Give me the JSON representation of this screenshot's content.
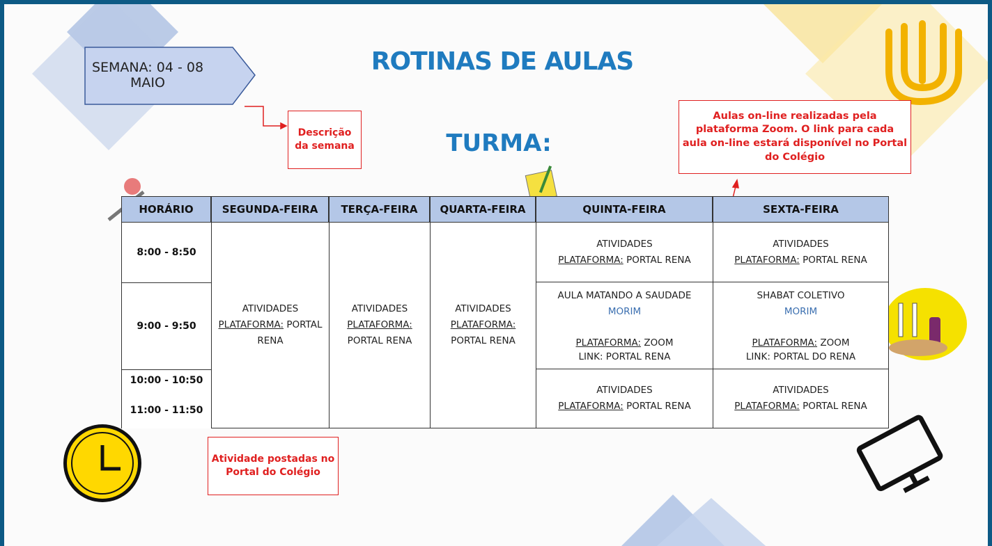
{
  "header": {
    "week": "SEMANA: 04 - 08 MAIO",
    "title": "ROTINAS DE AULAS",
    "class_label": "TURMA:"
  },
  "notes": {
    "week_description": "Descrição da semana",
    "online": "Aulas on-line realizadas pela plataforma Zoom. O link para cada aula on-line estará disponível no Portal do Colégio",
    "posted": "Atividade postadas no Portal do Colégio"
  },
  "table": {
    "headers": [
      "HORÁRIO",
      "SEGUNDA-FEIRA",
      "TERÇA-FEIRA",
      "QUARTA-FEIRA",
      "QUINTA-FEIRA",
      "SEXTA-FEIRA"
    ],
    "times": [
      "8:00 - 8:50",
      "9:00 - 9:50",
      "10:00 - 10:50",
      "11:00 - 11:50"
    ],
    "cells": [
      {
        "title": "ATIVIDADES",
        "platform_label": "PLATAFORMA:",
        "platform": "PORTAL RENA"
      },
      {
        "title": "ATIVIDADES",
        "platform_label": "PLATAFORMA:",
        "platform": "PORTAL RENA"
      },
      {
        "title": "ATIVIDADES",
        "platform_label": "PLATAFORMA:",
        "platform": "PORTAL RENA"
      },
      {
        "title": "ATIVIDADES",
        "platform_label": "PLATAFORMA:",
        "platform": "PORTAL RENA"
      },
      {
        "title": "AULA MATANDO A SAUDADE",
        "teacher": "MORIM",
        "platform_label": "PLATAFORMA:",
        "platform": "ZOOM",
        "link": "LINK: PORTAL RENA"
      },
      {
        "title": "ATIVIDADES",
        "platform_label": "PLATAFORMA:",
        "platform": "PORTAL RENA"
      },
      {
        "title": "ATIVIDADES",
        "platform_label": "PLATAFORMA:",
        "platform": "PORTAL RENA"
      },
      {
        "title": "SHABAT COLETIVO",
        "teacher": "MORIM",
        "platform_label": "PLATAFORMA:",
        "platform": "ZOOM",
        "link": "LINK: PORTAL DO RENA"
      },
      {
        "title": "ATIVIDADES",
        "platform_label": "PLATAFORMA:",
        "platform": "PORTAL RENA"
      }
    ]
  }
}
